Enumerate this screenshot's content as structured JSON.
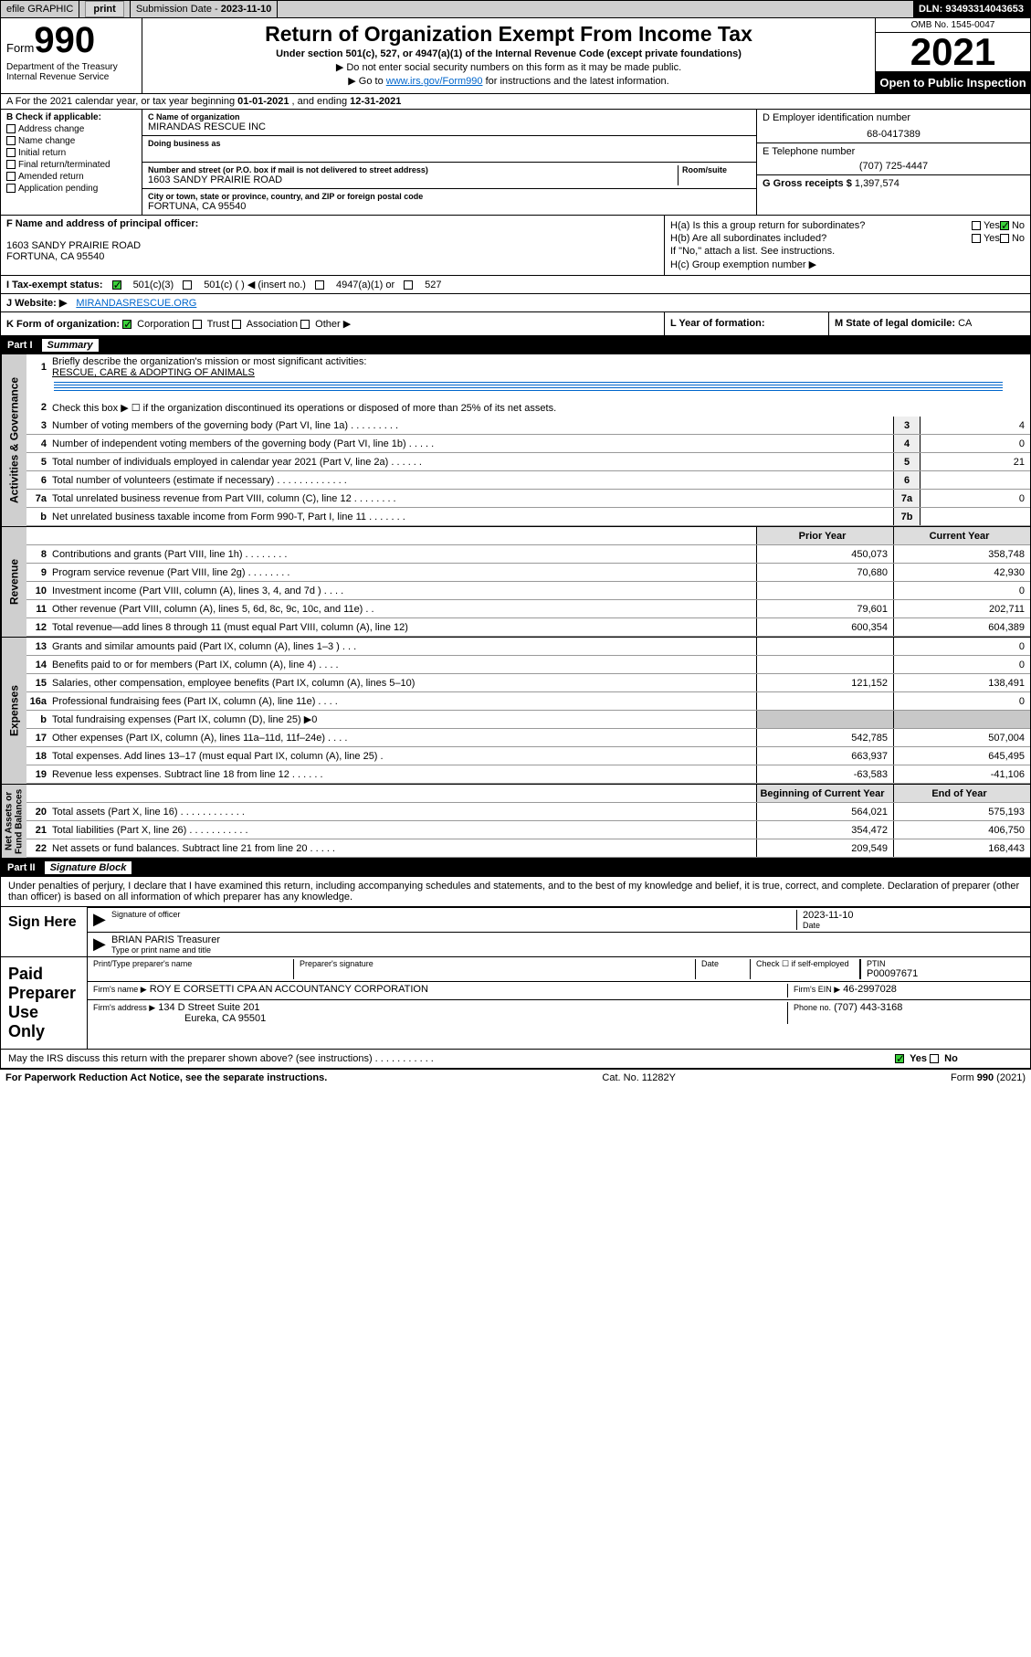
{
  "topbar": {
    "efile": "efile GRAPHIC",
    "print": "print",
    "subdate_lbl": "Submission Date - ",
    "subdate": "2023-11-10",
    "dln": "DLN: 93493314043653"
  },
  "header": {
    "form_lbl": "Form",
    "form_num": "990",
    "dept": "Department of the Treasury\nInternal Revenue Service",
    "title": "Return of Organization Exempt From Income Tax",
    "sub": "Under section 501(c), 527, or 4947(a)(1) of the Internal Revenue Code (except private foundations)",
    "note1": "▶ Do not enter social security numbers on this form as it may be made public.",
    "note2_pre": "▶ Go to ",
    "note2_link": "www.irs.gov/Form990",
    "note2_post": " for instructions and the latest information.",
    "omb": "OMB No. 1545-0047",
    "year": "2021",
    "open": "Open to Public Inspection"
  },
  "rowA": {
    "text_pre": "A For the 2021 calendar year, or tax year beginning ",
    "begin": "01-01-2021",
    "mid": " , and ending ",
    "end": "12-31-2021"
  },
  "B": {
    "lbl": "B Check if applicable:",
    "items": [
      "Address change",
      "Name change",
      "Initial return",
      "Final return/terminated",
      "Amended return",
      "Application pending"
    ]
  },
  "C": {
    "name_lbl": "C Name of organization",
    "name": "MIRANDAS RESCUE INC",
    "dba_lbl": "Doing business as",
    "addr_lbl": "Number and street (or P.O. box if mail is not delivered to street address)",
    "room_lbl": "Room/suite",
    "addr": "1603 SANDY PRAIRIE ROAD",
    "city_lbl": "City or town, state or province, country, and ZIP or foreign postal code",
    "city": "FORTUNA, CA  95540"
  },
  "D": {
    "lbl": "D Employer identification number",
    "val": "68-0417389"
  },
  "E": {
    "lbl": "E Telephone number",
    "val": "(707) 725-4447"
  },
  "G": {
    "lbl": "G Gross receipts $",
    "val": "1,397,574"
  },
  "F": {
    "lbl": "F  Name and address of principal officer:",
    "addr1": "1603 SANDY PRAIRIE ROAD",
    "addr2": "FORTUNA, CA  95540"
  },
  "H": {
    "a_lbl": "H(a)  Is this a group return for subordinates?",
    "a_yes": "Yes",
    "a_no": "No",
    "b_lbl": "H(b)  Are all subordinates included?",
    "b_yes": "Yes",
    "b_no": "No",
    "b_note": "If \"No,\" attach a list. See instructions.",
    "c_lbl": "H(c)  Group exemption number ▶"
  },
  "I": {
    "lbl": "I   Tax-exempt status:",
    "c3": "501(c)(3)",
    "c_other": "501(c) (   ) ◀ (insert no.)",
    "a4947": "4947(a)(1) or",
    "s527": "527"
  },
  "J": {
    "lbl": "J   Website: ▶",
    "val": "MIRANDASRESCUE.ORG"
  },
  "K": {
    "lbl": "K Form of organization:",
    "corp": "Corporation",
    "trust": "Trust",
    "assoc": "Association",
    "other": "Other ▶"
  },
  "L": {
    "lbl": "L Year of formation:"
  },
  "M": {
    "lbl": "M State of legal domicile:",
    "val": "CA"
  },
  "partI": {
    "num": "Part I",
    "title": "Summary",
    "l1_lbl": "Briefly describe the organization's mission or most significant activities:",
    "l1_val": "RESCUE, CARE & ADOPTING OF ANIMALS",
    "l2": "Check this box ▶ ☐  if the organization discontinued its operations or disposed of more than 25% of its net assets.",
    "lines_gov": [
      {
        "n": "3",
        "t": "Number of voting members of the governing body (Part VI, line 1a)  .   .   .   .   .   .   .   .   .",
        "box": "3",
        "v": "4"
      },
      {
        "n": "4",
        "t": "Number of independent voting members of the governing body (Part VI, line 1b)    .   .   .   .   .",
        "box": "4",
        "v": "0"
      },
      {
        "n": "5",
        "t": "Total number of individuals employed in calendar year 2021 (Part V, line 2a)    .   .   .   .   .   .",
        "box": "5",
        "v": "21"
      },
      {
        "n": "6",
        "t": "Total number of volunteers (estimate if necessary)   .   .   .   .   .   .   .   .   .   .   .   .   .",
        "box": "6",
        "v": ""
      },
      {
        "n": "7a",
        "t": "Total unrelated business revenue from Part VIII, column (C), line 12   .   .   .   .   .   .   .   .",
        "box": "7a",
        "v": "0"
      },
      {
        "n": "b",
        "t": "Net unrelated business taxable income from Form 990-T, Part I, line 11   .   .   .   .   .   .   .",
        "box": "7b",
        "v": ""
      }
    ],
    "hdr_prior": "Prior Year",
    "hdr_curr": "Current Year",
    "rev": [
      {
        "n": "8",
        "t": "Contributions and grants (Part VIII, line 1h)   .    .    .    .    .    .    .    .",
        "p": "450,073",
        "c": "358,748"
      },
      {
        "n": "9",
        "t": "Program service revenue (Part VIII, line 2g)   .    .    .    .    .    .    .    .",
        "p": "70,680",
        "c": "42,930"
      },
      {
        "n": "10",
        "t": "Investment income (Part VIII, column (A), lines 3, 4, and 7d )   .    .    .    .",
        "p": "",
        "c": "0"
      },
      {
        "n": "11",
        "t": "Other revenue (Part VIII, column (A), lines 5, 6d, 8c, 9c, 10c, and 11e)    .    .",
        "p": "79,601",
        "c": "202,711"
      },
      {
        "n": "12",
        "t": "Total revenue—add lines 8 through 11 (must equal Part VIII, column (A), line 12)",
        "p": "600,354",
        "c": "604,389"
      }
    ],
    "exp": [
      {
        "n": "13",
        "t": "Grants and similar amounts paid (Part IX, column (A), lines 1–3 )   .    .    .",
        "p": "",
        "c": "0"
      },
      {
        "n": "14",
        "t": "Benefits paid to or for members (Part IX, column (A), line 4)   .    .    .    .",
        "p": "",
        "c": "0"
      },
      {
        "n": "15",
        "t": "Salaries, other compensation, employee benefits (Part IX, column (A), lines 5–10)",
        "p": "121,152",
        "c": "138,491"
      },
      {
        "n": "16a",
        "t": "Professional fundraising fees (Part IX, column (A), line 11e)   .    .    .    .",
        "p": "",
        "c": "0"
      },
      {
        "n": "b",
        "t": "Total fundraising expenses (Part IX, column (D), line 25) ▶0",
        "p": "gray",
        "c": "gray"
      },
      {
        "n": "17",
        "t": "Other expenses (Part IX, column (A), lines 11a–11d, 11f–24e)   .    .    .    .",
        "p": "542,785",
        "c": "507,004"
      },
      {
        "n": "18",
        "t": "Total expenses. Add lines 13–17 (must equal Part IX, column (A), line 25)    .",
        "p": "663,937",
        "c": "645,495"
      },
      {
        "n": "19",
        "t": "Revenue less expenses. Subtract line 18 from line 12   .    .    .    .    .    .",
        "p": "-63,583",
        "c": "-41,106"
      }
    ],
    "hdr_beg": "Beginning of Current Year",
    "hdr_end": "End of Year",
    "net": [
      {
        "n": "20",
        "t": "Total assets (Part X, line 16)   .    .    .    .    .    .    .    .    .    .    .    .",
        "p": "564,021",
        "c": "575,193"
      },
      {
        "n": "21",
        "t": "Total liabilities (Part X, line 26)   .    .    .    .    .    .    .    .    .    .    .",
        "p": "354,472",
        "c": "406,750"
      },
      {
        "n": "22",
        "t": "Net assets or fund balances. Subtract line 21 from line 20   .    .    .    .    .",
        "p": "209,549",
        "c": "168,443"
      }
    ],
    "tab_gov": "Activities & Governance",
    "tab_rev": "Revenue",
    "tab_exp": "Expenses",
    "tab_net": "Net Assets or\nFund Balances"
  },
  "partII": {
    "num": "Part II",
    "title": "Signature Block",
    "declare": "Under penalties of perjury, I declare that I have examined this return, including accompanying schedules and statements, and to the best of my knowledge and belief, it is true, correct, and complete. Declaration of preparer (other than officer) is based on all information of which preparer has any knowledge.",
    "sign_here": "Sign Here",
    "sig_officer": "Signature of officer",
    "date_lbl": "Date",
    "sig_date": "2023-11-10",
    "name_title": "BRIAN PARIS  Treasurer",
    "name_lbl": "Type or print name and title",
    "paid": "Paid Preparer Use Only",
    "prep_name_lbl": "Print/Type preparer's name",
    "prep_sig_lbl": "Preparer's signature",
    "check_if": "Check ☐  if self-employed",
    "ptin_lbl": "PTIN",
    "ptin": "P00097671",
    "firm_name_lbl": "Firm's name   ▶",
    "firm_name": "ROY E CORSETTI CPA AN ACCOUNTANCY CORPORATION",
    "firm_ein_lbl": "Firm's EIN ▶",
    "firm_ein": "46-2997028",
    "firm_addr_lbl": "Firm's address ▶",
    "firm_addr1": "134 D Street Suite 201",
    "firm_addr2": "Eureka, CA  95501",
    "phone_lbl": "Phone no.",
    "phone": "(707) 443-3168",
    "discuss": "May the IRS discuss this return with the preparer shown above? (see instructions)   .    .    .    .    .    .    .    .    .    .    .",
    "yes": "Yes",
    "no": "No"
  },
  "footer": {
    "left": "For Paperwork Reduction Act Notice, see the separate instructions.",
    "mid": "Cat. No. 11282Y",
    "right": "Form 990 (2021)"
  },
  "colors": {
    "bg_gray": "#cfcfcf",
    "link": "#0066cc",
    "check_green": "#3bd23b"
  }
}
